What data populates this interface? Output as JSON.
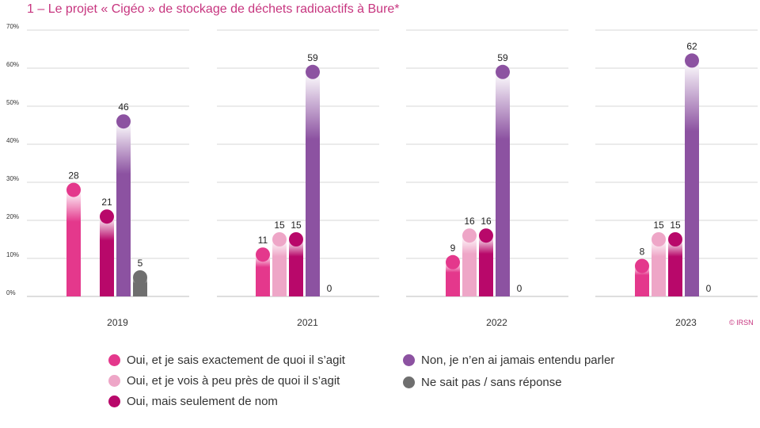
{
  "title": "1 – Le projet «  Cigéo » de stockage de déchets radioactifs à Bure*",
  "credit": "© IRSN",
  "chart_data": {
    "type": "bar",
    "categories": [
      "2019",
      "2021",
      "2022",
      "2023"
    ],
    "ylim": [
      0,
      70
    ],
    "yticks": [
      "0%",
      "10%",
      "20%",
      "30%",
      "40%",
      "50%",
      "60%",
      "70%"
    ],
    "grid": true,
    "legend_position": "bottom",
    "series": [
      {
        "name": "Oui, et je sais exactement de quoi il s’agit",
        "color": "#e4388c",
        "values": [
          28,
          11,
          9,
          8
        ]
      },
      {
        "name": "Oui, et je vois à peu  près de quoi il s’agit",
        "color": "#eea6c7",
        "values": [
          null,
          15,
          16,
          15
        ]
      },
      {
        "name": "Oui, mais seulement de nom",
        "color": "#b8086a",
        "values": [
          21,
          15,
          16,
          15
        ]
      },
      {
        "name": "Non, je n’en ai jamais entendu parler",
        "color": "#8c52a1",
        "values": [
          46,
          59,
          59,
          62
        ]
      },
      {
        "name": "Ne sait pas / sans réponse",
        "color": "#6f6f6f",
        "values": [
          5,
          0,
          0,
          0
        ]
      }
    ]
  }
}
